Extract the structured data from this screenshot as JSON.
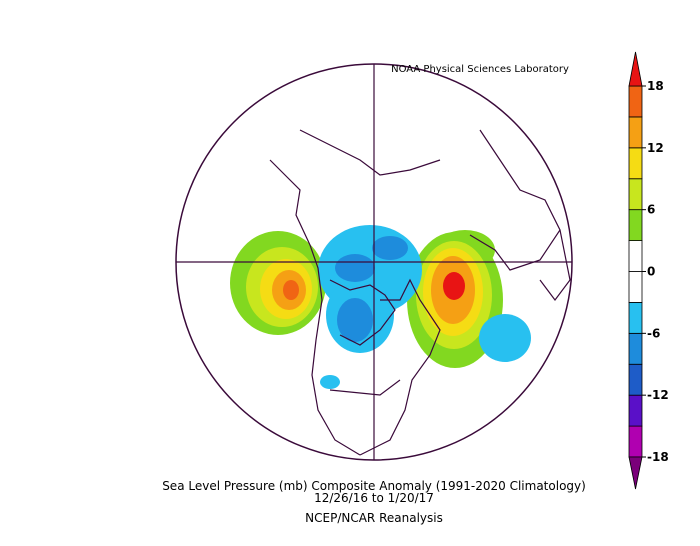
{
  "header": {
    "credit": "NOAA Physical Sciences Laboratory"
  },
  "footer": {
    "title": "Sea Level Pressure (mb) Composite Anomaly (1991-2020 Climatology)",
    "dates": "12/26/16  to 1/20/17",
    "source": "NCEP/NCAR Reanalysis"
  },
  "colorbar": {
    "lim": [
      -18,
      18
    ],
    "ticks": [
      18,
      12,
      6,
      0,
      -6,
      -12,
      -18
    ],
    "colors": [
      "#b000b0",
      "#5a10c8",
      "#1e5cc8",
      "#1e8cdc",
      "#28c0f0",
      "#ffffff",
      "#ffffff",
      "#82d820",
      "#c8e61e",
      "#f5dc14",
      "#f5a014",
      "#f06414"
    ],
    "over_color": "#e81414",
    "under_color": "#7a007a"
  }
}
